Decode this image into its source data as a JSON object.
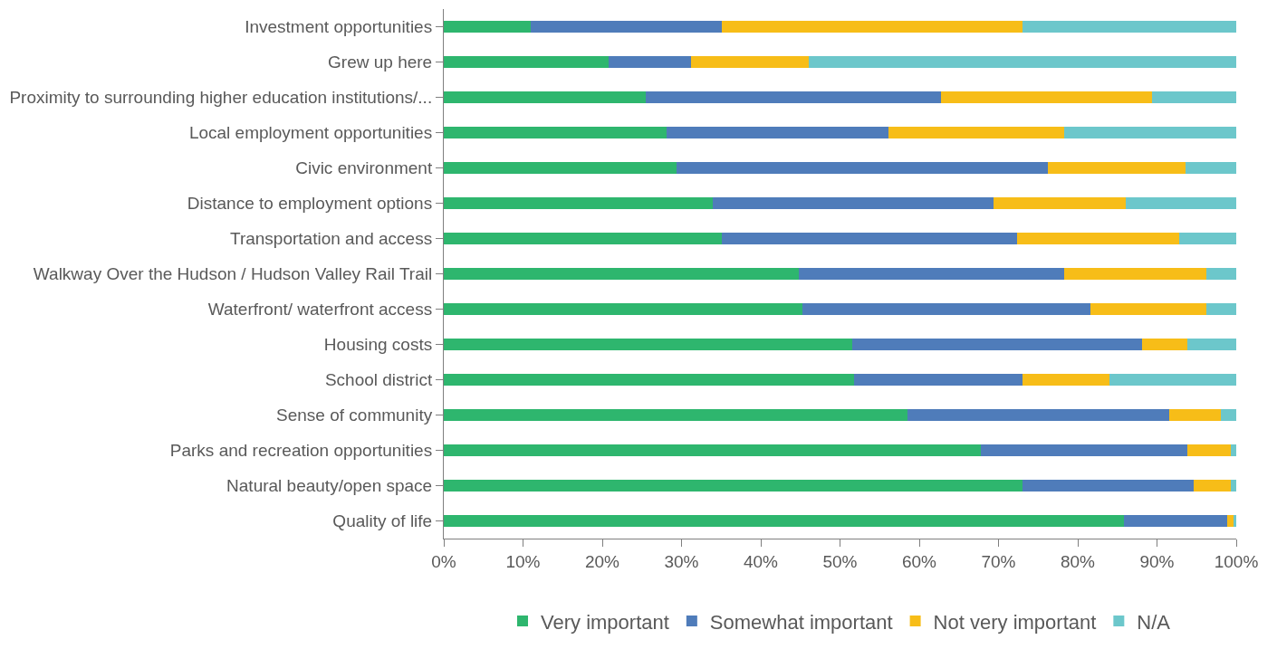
{
  "chart_data": {
    "type": "bar",
    "orientation": "horizontal",
    "stacked": true,
    "legend": "bottom",
    "grid": false,
    "categories": [
      "Investment opportunities",
      "Grew up here",
      "Proximity to surrounding higher education institutions/...",
      "Local employment opportunities",
      "Civic environment",
      "Distance to employment options",
      "Transportation and access",
      "Walkway Over the Hudson / Hudson Valley Rail Trail",
      "Waterfront/ waterfront access",
      "Housing costs",
      "School district",
      "Sense of community",
      "Parks and recreation opportunities",
      "Natural beauty/open space",
      "Quality of life"
    ],
    "series": [
      {
        "name": "Very important",
        "color": "#2eb66e",
        "values": [
          11.0,
          20.8,
          25.5,
          28.1,
          29.4,
          33.9,
          35.1,
          44.8,
          45.3,
          51.5,
          51.8,
          58.5,
          67.8,
          73.0,
          85.8
        ]
      },
      {
        "name": "Somewhat important",
        "color": "#4f7cba",
        "values": [
          24.1,
          10.4,
          37.2,
          28.0,
          46.8,
          35.5,
          37.2,
          33.5,
          36.3,
          36.6,
          21.2,
          33.0,
          26.0,
          21.6,
          13.0
        ]
      },
      {
        "name": "Not very important",
        "color": "#f7bd18",
        "values": [
          37.9,
          14.8,
          26.7,
          22.2,
          17.4,
          16.6,
          20.5,
          17.9,
          14.6,
          5.7,
          11.0,
          6.5,
          5.5,
          4.7,
          0.8
        ]
      },
      {
        "name": "N/A",
        "color": "#6cc7cb",
        "values": [
          27.0,
          54.0,
          10.6,
          21.7,
          6.4,
          14.0,
          7.2,
          3.8,
          3.8,
          6.2,
          16.0,
          2.0,
          0.7,
          0.7,
          0.4
        ]
      }
    ],
    "xlim": [
      0,
      100
    ],
    "xticks": [
      {
        "value": 0,
        "label": "0%"
      },
      {
        "value": 10,
        "label": "10%"
      },
      {
        "value": 20,
        "label": "20%"
      },
      {
        "value": 30,
        "label": "30%"
      },
      {
        "value": 40,
        "label": "40%"
      },
      {
        "value": 50,
        "label": "50%"
      },
      {
        "value": 60,
        "label": "60%"
      },
      {
        "value": 70,
        "label": "70%"
      },
      {
        "value": 80,
        "label": "80%"
      },
      {
        "value": 90,
        "label": "90%"
      },
      {
        "value": 100,
        "label": "100%"
      }
    ]
  }
}
